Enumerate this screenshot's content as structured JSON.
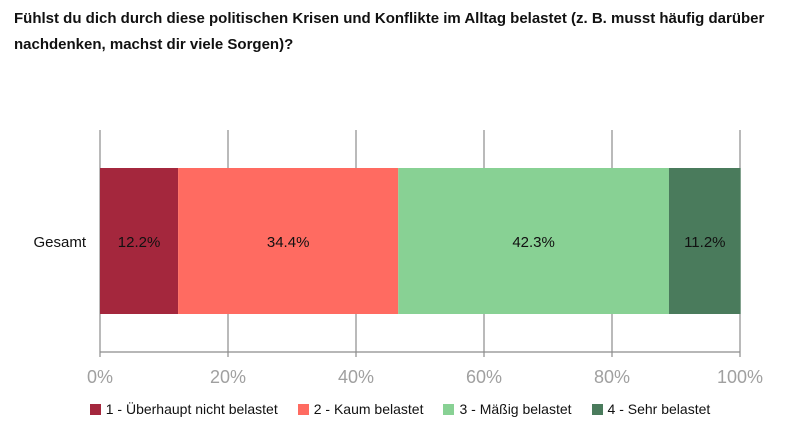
{
  "chart_data": {
    "type": "bar",
    "orientation": "horizontal-stacked",
    "title": "Fühlst du dich durch diese politischen Krisen und Konflikte im Alltag belastet (z. B. musst häufig darüber nachdenken, machst dir viele Sorgen)?",
    "categories": [
      "Gesamt"
    ],
    "series": [
      {
        "name": "1 - Überhaupt nicht belastet",
        "values": [
          12.2
        ],
        "label": "12.2%",
        "color": "#A4273D"
      },
      {
        "name": "2 - Kaum belastet",
        "values": [
          34.4
        ],
        "label": "34.4%",
        "color": "#FF6B61"
      },
      {
        "name": "3 - Mäßig belastet",
        "values": [
          42.3
        ],
        "label": "42.3%",
        "color": "#88D194"
      },
      {
        "name": "4 - Sehr belastet",
        "values": [
          11.2
        ],
        "label": "11.2%",
        "color": "#4A7B5C"
      }
    ],
    "xlim": [
      0,
      100
    ],
    "xticks": [
      "0%",
      "20%",
      "40%",
      "60%",
      "80%",
      "100%"
    ],
    "grid": true,
    "legend_position": "bottom"
  }
}
